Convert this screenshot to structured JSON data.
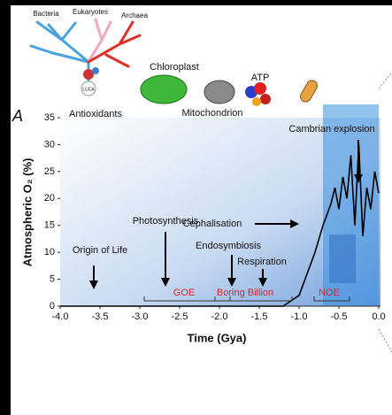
{
  "panel_label": "A",
  "illustrations": {
    "tree_labels": [
      "Bacteria",
      "Eukaryotes",
      "Archaea"
    ],
    "luca": "LUCA",
    "antioxidants": "Antioxidants",
    "chloroplast": "Chloroplast",
    "mitochondrion": "Mitochondrion",
    "atp": "ATP"
  },
  "chart_data": {
    "type": "line",
    "x_label": "Time (Gya)",
    "y_label": "Atmospheric O₂ (%)",
    "x": [
      -4.0,
      -1.2,
      -1.0,
      -0.9,
      -0.8,
      -0.7,
      -0.6,
      -0.55,
      -0.5,
      -0.45,
      -0.4,
      -0.35,
      -0.3,
      -0.25,
      -0.2,
      -0.15,
      -0.1,
      -0.05,
      0.0
    ],
    "series": [
      {
        "color": "#000000",
        "values": [
          0,
          0,
          2,
          6,
          10,
          15,
          19,
          22,
          18,
          24,
          20,
          28,
          15,
          30,
          13,
          22,
          18,
          25,
          21
        ]
      }
    ],
    "xlim": [
      -4.0,
      0.0
    ],
    "ylim": [
      0,
      35
    ],
    "xticks": [
      {
        "value": -4,
        "label": "-4.0"
      },
      -3.5,
      {
        "value": -3,
        "label": "-3.0"
      },
      -2.5,
      {
        "value": -2,
        "label": "-2.0"
      },
      -1.5,
      {
        "value": -1,
        "label": "-1.0"
      },
      -0.5,
      {
        "value": 0,
        "label": "0.0"
      }
    ],
    "yticks": [
      0,
      5,
      10,
      15,
      20,
      25,
      30,
      35
    ],
    "annotations": [
      "Origin of Life",
      "Photosynthesis",
      "Endosymbiosis",
      "Respiration",
      "Cephalisation",
      "Cambrian explosion"
    ],
    "periods": [
      "GOE",
      "Boring Billion",
      "NOE"
    ]
  }
}
